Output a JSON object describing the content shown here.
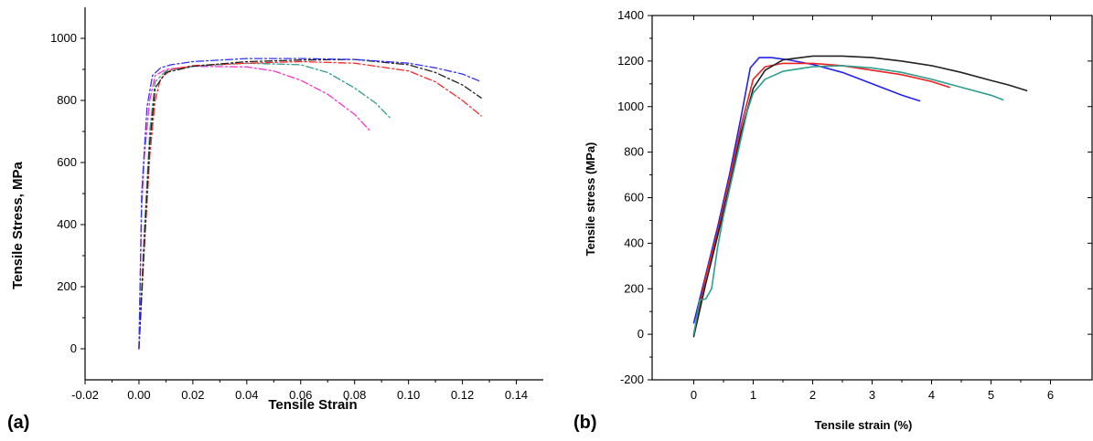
{
  "chart_data": [
    {
      "type": "line",
      "panel_label": "(a)",
      "xlabel": "Tensile Strain",
      "ylabel": "Tensile Stress, MPa",
      "xlim": [
        -0.02,
        0.15
      ],
      "ylim": [
        -100,
        1100
      ],
      "xticks": [
        -0.02,
        0.0,
        0.02,
        0.04,
        0.06,
        0.08,
        0.1,
        0.12,
        0.14
      ],
      "xtick_labels": [
        "-0.02",
        "0.00",
        "0.02",
        "0.04",
        "0.06",
        "0.08",
        "0.10",
        "0.12",
        "0.14"
      ],
      "yticks": [
        0,
        200,
        400,
        600,
        800,
        1000
      ],
      "ytick_labels": [
        "0",
        "200",
        "400",
        "600",
        "800",
        "1000"
      ],
      "grid": false,
      "series": [
        {
          "color": "#ff33cc",
          "dash": "8,3,2,3",
          "x": [
            0.0,
            0.001,
            0.002,
            0.004,
            0.006,
            0.01,
            0.02,
            0.04,
            0.05,
            0.06,
            0.07,
            0.08,
            0.086
          ],
          "y": [
            0,
            450,
            620,
            800,
            880,
            900,
            910,
            908,
            895,
            865,
            820,
            755,
            700
          ]
        },
        {
          "color": "#2f9e8f",
          "dash": "8,3,2,3",
          "x": [
            0.0,
            0.002,
            0.004,
            0.006,
            0.01,
            0.02,
            0.04,
            0.06,
            0.07,
            0.08,
            0.088,
            0.093
          ],
          "y": [
            0,
            380,
            700,
            860,
            895,
            910,
            920,
            915,
            890,
            840,
            790,
            745
          ]
        },
        {
          "color": "#ff2a2a",
          "dash": "8,3,2,3",
          "x": [
            0.0,
            0.002,
            0.004,
            0.006,
            0.008,
            0.012,
            0.02,
            0.04,
            0.06,
            0.08,
            0.1,
            0.11,
            0.12,
            0.127
          ],
          "y": [
            0,
            320,
            620,
            800,
            870,
            900,
            912,
            920,
            925,
            920,
            895,
            860,
            800,
            750
          ]
        },
        {
          "color": "#222222",
          "dash": "8,3,2,3",
          "x": [
            0.0,
            0.002,
            0.004,
            0.006,
            0.01,
            0.02,
            0.04,
            0.06,
            0.08,
            0.1,
            0.11,
            0.12,
            0.127
          ],
          "y": [
            0,
            350,
            660,
            840,
            890,
            910,
            925,
            930,
            932,
            915,
            890,
            850,
            808
          ]
        },
        {
          "color": "#3333ff",
          "dash": "8,3,2,3",
          "x": [
            0.0,
            0.001,
            0.003,
            0.005,
            0.008,
            0.012,
            0.02,
            0.04,
            0.06,
            0.08,
            0.1,
            0.11,
            0.12,
            0.127
          ],
          "y": [
            0,
            500,
            780,
            880,
            905,
            915,
            925,
            935,
            935,
            932,
            920,
            905,
            885,
            860
          ]
        }
      ]
    },
    {
      "type": "line",
      "panel_label": "(b)",
      "xlabel": "Tensile strain (%)",
      "ylabel": "Tensile stress (MPa)",
      "xlim": [
        -0.7,
        6.7
      ],
      "ylim": [
        -200,
        1400
      ],
      "xticks": [
        0,
        1,
        2,
        3,
        4,
        5,
        6
      ],
      "xtick_labels": [
        "0",
        "1",
        "2",
        "3",
        "4",
        "5",
        "6"
      ],
      "yticks": [
        -200,
        0,
        200,
        400,
        600,
        800,
        1000,
        1200,
        1400
      ],
      "ytick_labels": [
        "-200",
        "0",
        "200",
        "400",
        "600",
        "800",
        "1000",
        "1200",
        "1400"
      ],
      "grid": false,
      "series": [
        {
          "color": "#2222ee",
          "x": [
            0.0,
            0.2,
            0.4,
            0.6,
            0.8,
            0.95,
            1.1,
            1.3,
            1.6,
            2.0,
            2.5,
            3.0,
            3.5,
            3.8
          ],
          "y": [
            50,
            260,
            470,
            700,
            960,
            1170,
            1215,
            1215,
            1205,
            1185,
            1150,
            1100,
            1050,
            1025
          ]
        },
        {
          "color": "#ee2222",
          "x": [
            0.0,
            0.2,
            0.4,
            0.6,
            0.8,
            1.0,
            1.2,
            1.5,
            2.0,
            2.5,
            3.0,
            3.5,
            4.0,
            4.3
          ],
          "y": [
            0,
            250,
            450,
            680,
            920,
            1120,
            1175,
            1190,
            1190,
            1180,
            1160,
            1140,
            1110,
            1085
          ]
        },
        {
          "color": "#222222",
          "x": [
            0.0,
            0.2,
            0.4,
            0.6,
            0.8,
            1.0,
            1.2,
            1.5,
            2.0,
            2.5,
            3.0,
            3.5,
            4.0,
            4.5,
            5.0,
            5.3,
            5.6
          ],
          "y": [
            -10,
            220,
            430,
            650,
            890,
            1080,
            1160,
            1205,
            1222,
            1222,
            1215,
            1200,
            1180,
            1150,
            1115,
            1095,
            1070
          ]
        },
        {
          "color": "#2f9e8f",
          "x": [
            0.0,
            0.1,
            0.2,
            0.3,
            0.4,
            0.5,
            0.7,
            0.9,
            1.0,
            1.2,
            1.5,
            2.0,
            2.5,
            3.0,
            3.5,
            4.0,
            4.5,
            5.0,
            5.2
          ],
          "y": [
            0,
            150,
            155,
            200,
            380,
            520,
            750,
            980,
            1060,
            1120,
            1155,
            1175,
            1180,
            1170,
            1150,
            1120,
            1085,
            1050,
            1030
          ]
        }
      ]
    }
  ]
}
